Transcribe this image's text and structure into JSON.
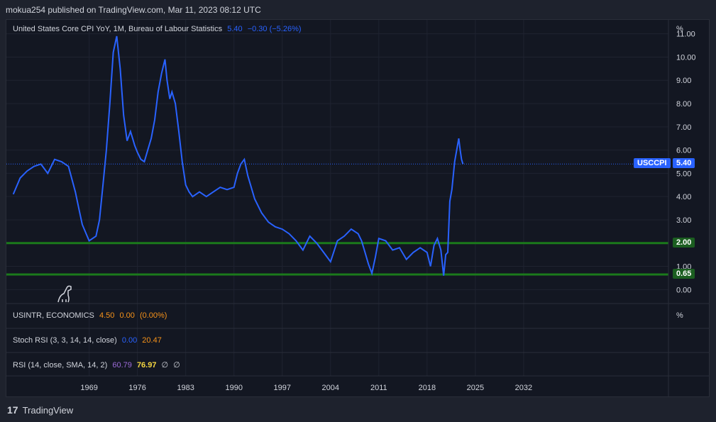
{
  "header": {
    "published": "mokua254 published on TradingView.com, Mar 11, 2023 08:12 UTC"
  },
  "footer": {
    "brand": "TradingView"
  },
  "main_legend": {
    "title": "United States Core CPI YoY, 1M, Bureau of Labour Statistics",
    "value": "5.40",
    "change": "−0.30 (−5.26%)"
  },
  "pane_usintr": {
    "title": "USINTR, ECONOMICS",
    "v1": "4.50",
    "v2": "0.00",
    "v3": "(0.00%)",
    "unit": "%"
  },
  "pane_stoch": {
    "title": "Stoch RSI (3, 3, 14, 14, close)",
    "k": "0.00",
    "d": "20.47"
  },
  "pane_rsi": {
    "title": "RSI (14, close, SMA, 14, 2)",
    "rsi": "60.79",
    "sma": "76.97",
    "e1": "∅",
    "e2": "∅"
  },
  "colors": {
    "line": "#2962ff",
    "hline": "#1b7a1b",
    "bg": "#131722"
  },
  "price_tag": {
    "label": "USCCPI",
    "value": "5.40"
  },
  "chart_data": {
    "type": "line",
    "title": "United States Core CPI YoY, 1M, Bureau of Labour Statistics",
    "ylabel": "%",
    "ylim": [
      -0.6,
      11.6
    ],
    "xlim": [
      1957,
      2053
    ],
    "yticks": [
      "0.00",
      "1.00",
      "2.00",
      "3.00",
      "4.00",
      "5.00",
      "6.00",
      "7.00",
      "8.00",
      "9.00",
      "10.00",
      "11.00"
    ],
    "xticks": [
      "1969",
      "1976",
      "1983",
      "1990",
      "1997",
      "2004",
      "2011",
      "2018",
      "2025",
      "2032"
    ],
    "horizontal_lines": [
      {
        "value": 2.0,
        "label": "2.00"
      },
      {
        "value": 0.65,
        "label": "0.65"
      }
    ],
    "series": [
      {
        "name": "USCCPI",
        "x": [
          1958,
          1959,
          1960,
          1961,
          1962,
          1963,
          1964,
          1965,
          1966,
          1967,
          1967.5,
          1968,
          1969,
          1970,
          1970.5,
          1971,
          1971.5,
          1972,
          1972.5,
          1973,
          1973.5,
          1974,
          1974.5,
          1975,
          1975.3,
          1975.6,
          1976,
          1976.5,
          1977,
          1977.5,
          1978,
          1978.5,
          1979,
          1979.5,
          1980,
          1980.3,
          1980.7,
          1981,
          1981.5,
          1982,
          1982.5,
          1983,
          1983.5,
          1984,
          1985,
          1986,
          1987,
          1988,
          1989,
          1990,
          1990.5,
          1991,
          1991.5,
          1992,
          1993,
          1994,
          1995,
          1996,
          1997,
          1998,
          1999,
          2000,
          2001,
          2002,
          2003,
          2004,
          2005,
          2006,
          2007,
          2008,
          2008.5,
          2009,
          2009.5,
          2010,
          2010.5,
          2011,
          2012,
          2012.5,
          2013,
          2014,
          2015,
          2016,
          2017,
          2018,
          2018.5,
          2019,
          2019.5,
          2020,
          2020.4,
          2020.7,
          2021,
          2021.3,
          2021.6,
          2022,
          2022.3,
          2022.6,
          2022.8,
          2023,
          2023.2
        ],
        "y": [
          4.1,
          4.8,
          5.1,
          5.3,
          5.4,
          5.0,
          5.6,
          5.5,
          5.3,
          4.2,
          3.5,
          2.8,
          2.1,
          2.3,
          3.0,
          4.5,
          6.0,
          8.0,
          10.2,
          10.9,
          9.5,
          7.5,
          6.4,
          6.8,
          6.5,
          6.2,
          5.9,
          5.6,
          5.5,
          6.0,
          6.5,
          7.3,
          8.5,
          9.3,
          9.9,
          9.0,
          8.2,
          8.5,
          8.0,
          6.8,
          5.5,
          4.5,
          4.2,
          4.0,
          4.2,
          4.0,
          4.2,
          4.4,
          4.3,
          4.4,
          5.0,
          5.4,
          5.6,
          4.9,
          3.9,
          3.3,
          2.9,
          2.7,
          2.6,
          2.4,
          2.1,
          1.7,
          2.3,
          2.0,
          1.6,
          1.2,
          2.1,
          2.3,
          2.6,
          2.4,
          2.1,
          1.6,
          1.1,
          0.7,
          1.4,
          2.2,
          2.1,
          1.9,
          1.7,
          1.8,
          1.3,
          1.6,
          1.8,
          1.6,
          1.0,
          1.9,
          2.2,
          1.7,
          0.6,
          1.5,
          1.6,
          3.8,
          4.3,
          5.5,
          6.0,
          6.5,
          6.0,
          5.6,
          5.4
        ]
      }
    ]
  }
}
